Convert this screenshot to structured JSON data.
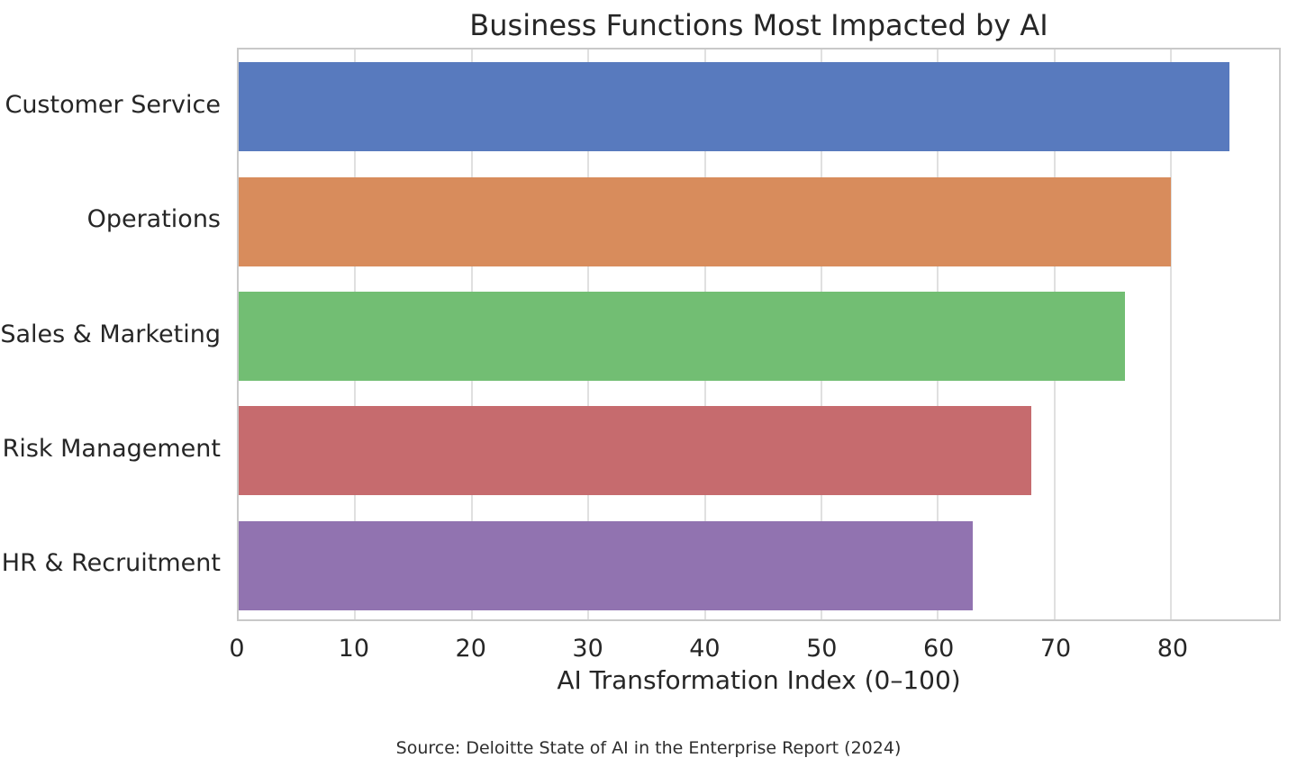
{
  "chart_data": {
    "type": "bar",
    "orientation": "horizontal",
    "title": "Business Functions Most Impacted by AI",
    "categories": [
      "Customer Service",
      "Operations",
      "Sales & Marketing",
      "Risk Management",
      "HR & Recruitment"
    ],
    "values": [
      85,
      80,
      76,
      68,
      63
    ],
    "bar_colors": [
      "#587abe",
      "#d88c5c",
      "#72be73",
      "#c66b6e",
      "#9173b0"
    ],
    "xlabel": "AI Transformation Index (0–100)",
    "ylabel": "",
    "xlim": [
      0,
      89.25
    ],
    "x_ticks": [
      0,
      10,
      20,
      30,
      40,
      50,
      60,
      70,
      80
    ],
    "grid": "vertical-only",
    "legend": "none",
    "source": "Source: Deloitte State of AI in the Enterprise Report (2024)"
  },
  "colors": {
    "background": "#ffffff",
    "text": "#262626",
    "spine": "#c9c9c9",
    "gridline": "#e0e0e0"
  }
}
